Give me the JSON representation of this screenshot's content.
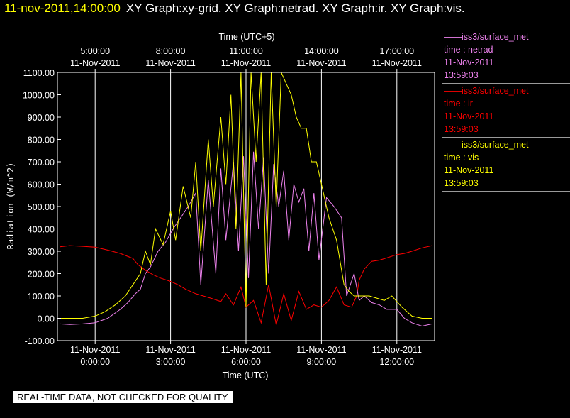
{
  "header": {
    "timestamp": "11-nov-2011,14:00:00",
    "graphs": "XY Graph:xy-grid.  XY Graph:netrad.  XY Graph:ir.  XY Graph:vis."
  },
  "banner": "REAL-TIME DATA, NOT CHECKED FOR QUALITY",
  "legend": [
    {
      "line1": "——iss3/surface_met",
      "line2": "time : netrad",
      "line3": "11-Nov-2011",
      "line4": "13:59:03",
      "color": "#ee82ee"
    },
    {
      "line1": "——iss3/surface_met",
      "line2": "time : ir",
      "line3": "11-Nov-2011",
      "line4": "13:59:03",
      "color": "#ff0000"
    },
    {
      "line1": "——iss3/surface_met",
      "line2": "time : vis",
      "line3": "11-Nov-2011",
      "line4": "13:59:03",
      "color": "#ffff00"
    }
  ],
  "chart_data": {
    "type": "line",
    "title": "Time (UTC+5)",
    "xlabel": "Time (UTC)",
    "ylabel": "Radiation (W/m^2)",
    "xlim": [
      -1.5,
      13.5
    ],
    "ylim": [
      -100,
      1100
    ],
    "grid": true,
    "yticks": [
      "-100.00",
      "0.00",
      "100.00",
      "200.00",
      "300.00",
      "400.00",
      "500.00",
      "600.00",
      "700.00",
      "800.00",
      "900.00",
      "1000.00",
      "1100.00"
    ],
    "yticks_values": [
      -100,
      0,
      100,
      200,
      300,
      400,
      500,
      600,
      700,
      800,
      900,
      1000,
      1100
    ],
    "bottom_ticks": [
      {
        "hour": 0,
        "date": "11-Nov-2011",
        "time": "0:00:00"
      },
      {
        "hour": 3,
        "date": "11-Nov-2011",
        "time": "3:00:00"
      },
      {
        "hour": 6,
        "date": "11-Nov-2011",
        "time": "6:00:00"
      },
      {
        "hour": 9,
        "date": "11-Nov-2011",
        "time": "9:00:00"
      },
      {
        "hour": 12,
        "date": "11-Nov-2011",
        "time": "12:00:00"
      }
    ],
    "top_ticks": [
      {
        "hour": 0,
        "time": "5:00:00",
        "date": "11-Nov-2011"
      },
      {
        "hour": 3,
        "time": "8:00:00",
        "date": "11-Nov-2011"
      },
      {
        "hour": 6,
        "time": "11:00:00",
        "date": "11-Nov-2011"
      },
      {
        "hour": 9,
        "time": "14:00:00",
        "date": "11-Nov-2011"
      },
      {
        "hour": 12,
        "time": "17:00:00",
        "date": "11-Nov-2011"
      }
    ],
    "series": [
      {
        "name": "ir",
        "color": "#ff0000",
        "x": [
          -1.4,
          -1.0,
          -0.5,
          0.0,
          0.5,
          1.0,
          1.5,
          1.7,
          2.0,
          2.3,
          2.6,
          3.0,
          3.3,
          3.6,
          4.0,
          4.3,
          4.6,
          5.0,
          5.2,
          5.5,
          5.8,
          6.0,
          6.3,
          6.6,
          6.9,
          7.2,
          7.5,
          7.8,
          8.1,
          8.4,
          8.7,
          9.0,
          9.3,
          9.6,
          9.9,
          10.2,
          10.4,
          10.5,
          10.7,
          11.0,
          11.3,
          11.6,
          12.0,
          12.3,
          12.6,
          13.0,
          13.4
        ],
        "y": [
          320,
          325,
          322,
          318,
          305,
          290,
          268,
          240,
          215,
          195,
          180,
          165,
          150,
          130,
          110,
          100,
          90,
          75,
          110,
          60,
          140,
          50,
          80,
          -20,
          150,
          -30,
          110,
          -10,
          120,
          40,
          60,
          50,
          80,
          140,
          60,
          50,
          100,
          170,
          220,
          255,
          260,
          270,
          285,
          290,
          300,
          315,
          325
        ]
      },
      {
        "name": "netrad",
        "color": "#ee82ee",
        "x": [
          -1.4,
          -1.0,
          -0.5,
          0.0,
          0.5,
          1.0,
          1.3,
          1.6,
          1.8,
          2.0,
          2.2,
          2.5,
          2.8,
          3.1,
          3.4,
          3.7,
          4.0,
          4.2,
          4.5,
          4.8,
          5.0,
          5.2,
          5.5,
          5.7,
          5.9,
          6.1,
          6.3,
          6.5,
          6.7,
          6.9,
          7.1,
          7.3,
          7.5,
          7.7,
          7.9,
          8.1,
          8.3,
          8.5,
          8.7,
          8.9,
          9.2,
          9.5,
          9.8,
          10.0,
          10.3,
          10.5,
          10.7,
          11.0,
          11.3,
          11.6,
          12.0,
          12.3,
          12.6,
          13.0,
          13.4
        ],
        "y": [
          -25,
          -28,
          -25,
          -20,
          0,
          40,
          70,
          110,
          130,
          200,
          230,
          300,
          340,
          400,
          450,
          500,
          560,
          150,
          620,
          200,
          670,
          350,
          700,
          300,
          725,
          180,
          745,
          400,
          720,
          200,
          690,
          500,
          660,
          350,
          600,
          520,
          580,
          300,
          560,
          260,
          540,
          500,
          450,
          100,
          200,
          80,
          100,
          70,
          60,
          40,
          40,
          0,
          -20,
          -35,
          -25
        ]
      },
      {
        "name": "vis",
        "color": "#ffff00",
        "x": [
          -1.4,
          -1.0,
          -0.5,
          0.0,
          0.4,
          0.8,
          1.2,
          1.5,
          1.8,
          2.0,
          2.2,
          2.4,
          2.7,
          3.0,
          3.2,
          3.5,
          3.8,
          4.0,
          4.2,
          4.5,
          4.7,
          5.0,
          5.2,
          5.4,
          5.6,
          5.8,
          6.0,
          6.2,
          6.4,
          6.6,
          6.8,
          7.0,
          7.2,
          7.4,
          7.6,
          7.8,
          8.0,
          8.2,
          8.4,
          8.6,
          8.8,
          9.0,
          9.3,
          9.6,
          9.9,
          10.1,
          10.3,
          10.6,
          10.9,
          11.2,
          11.5,
          11.8,
          12.2,
          12.6,
          13.0,
          13.4
        ],
        "y": [
          0,
          0,
          0,
          10,
          30,
          60,
          100,
          150,
          200,
          300,
          240,
          400,
          330,
          480,
          350,
          590,
          450,
          700,
          300,
          800,
          500,
          900,
          600,
          1000,
          400,
          1100,
          50,
          1100,
          700,
          1100,
          150,
          1100,
          500,
          1100,
          1050,
          1000,
          900,
          850,
          850,
          700,
          700,
          600,
          450,
          350,
          150,
          120,
          100,
          100,
          100,
          90,
          80,
          100,
          50,
          10,
          0,
          0
        ]
      }
    ]
  }
}
